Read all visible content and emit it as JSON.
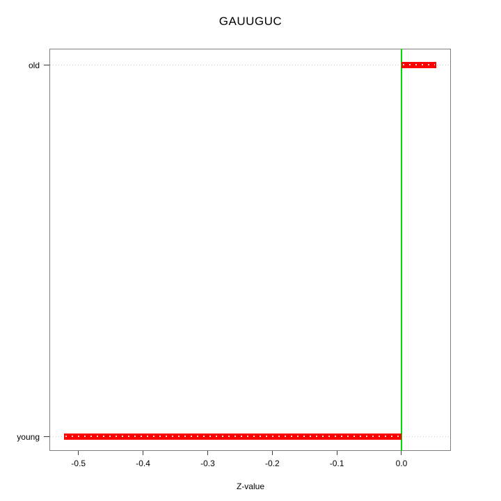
{
  "chart_data": {
    "type": "bar",
    "subtype": "horizontal-range-dotchart",
    "title": "GAUUGUC",
    "xlabel": "Z-value",
    "ylabel": "",
    "categories": [
      "old",
      "young"
    ],
    "series": [
      {
        "name": "Z-value",
        "color": "#ff0000",
        "data": [
          {
            "category": "old",
            "from": 0.0,
            "to": 0.054
          },
          {
            "category": "young",
            "from": -0.522,
            "to": 0.0
          }
        ]
      }
    ],
    "x_tick_labels": [
      "-0.5",
      "-0.4",
      "-0.3",
      "-0.2",
      "-0.1",
      "0.0"
    ],
    "x_tick_values": [
      -0.5,
      -0.4,
      -0.3,
      -0.2,
      -0.1,
      0.0
    ],
    "xlim": [
      -0.545,
      0.0765
    ],
    "reference_line": {
      "x": 0.0
    },
    "grid": {
      "style": "dotted",
      "orientation": "horizontal",
      "at": "each category"
    },
    "legend": null,
    "category_y_fractions": {
      "old": 0.0398,
      "young": 0.9637
    }
  },
  "colors": {
    "bar": "#ff0000",
    "reference_line": "#00dd00",
    "box_border": "#7d7d7d",
    "grid": "#c4c4c4",
    "tick": "#3a3a3a",
    "text": "#000000",
    "background": "#ffffff"
  }
}
